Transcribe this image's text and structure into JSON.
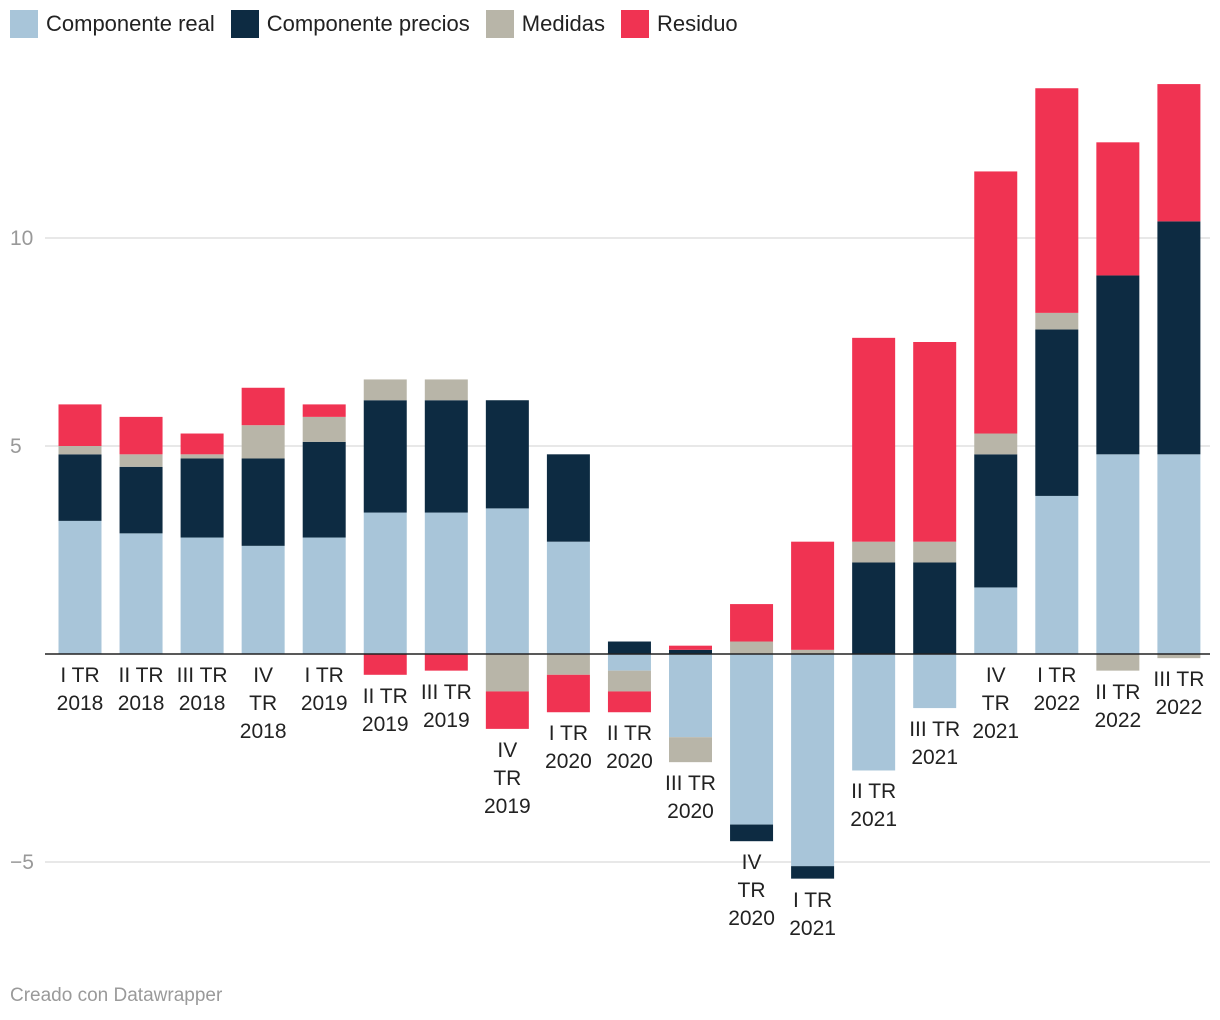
{
  "chart_data": {
    "type": "bar",
    "stacked": true,
    "title": "",
    "xlabel": "",
    "ylabel": "",
    "ylim": [
      -5.6,
      14
    ],
    "yticks": [
      -5,
      5,
      10
    ],
    "ytick_labels": [
      "−5",
      "5",
      "10"
    ],
    "grid": true,
    "legend_position": "top-left",
    "categories": [
      "I TR\n2018",
      "II TR\n2018",
      "III TR\n2018",
      "IV\nTR\n2018",
      "I TR\n2019",
      "II TR\n2019",
      "III TR\n2019",
      "IV\nTR\n2019",
      "I TR\n2020",
      "II TR\n2020",
      "III TR\n2020",
      "IV\nTR\n2020",
      "I TR\n2021",
      "II TR\n2021",
      "III TR\n2021",
      "IV\nTR\n2021",
      "I TR\n2022",
      "II TR\n2022",
      "III TR\n2022"
    ],
    "series": [
      {
        "name": "Componente real",
        "color": "#a8c5d9",
        "values": [
          3.2,
          2.9,
          2.8,
          2.6,
          2.8,
          3.4,
          3.4,
          3.5,
          2.7,
          -0.4,
          -2.0,
          -4.1,
          -5.1,
          -2.8,
          -1.3,
          1.6,
          3.8,
          4.8,
          4.8
        ]
      },
      {
        "name": "Componente precios",
        "color": "#0d2b42",
        "values": [
          1.6,
          1.6,
          1.9,
          2.1,
          2.3,
          2.7,
          2.7,
          2.6,
          2.1,
          0.3,
          0.1,
          -0.4,
          -0.3,
          2.2,
          2.2,
          3.2,
          4.0,
          4.3,
          5.6
        ]
      },
      {
        "name": "Medidas",
        "color": "#b8b5a8",
        "values": [
          0.2,
          0.3,
          0.1,
          0.8,
          0.6,
          0.5,
          0.5,
          -0.9,
          -0.5,
          -0.5,
          -0.6,
          0.3,
          0.1,
          0.5,
          0.5,
          0.5,
          0.4,
          -0.4,
          -0.1
        ]
      },
      {
        "name": "Residuo",
        "color": "#f03352",
        "values": [
          1.0,
          0.9,
          0.5,
          0.9,
          0.3,
          -0.5,
          -0.4,
          -0.9,
          -0.9,
          -0.5,
          0.1,
          0.9,
          2.6,
          4.9,
          4.8,
          6.3,
          5.4,
          3.2,
          3.3
        ]
      }
    ]
  },
  "footer": "Creado con Datawrapper"
}
